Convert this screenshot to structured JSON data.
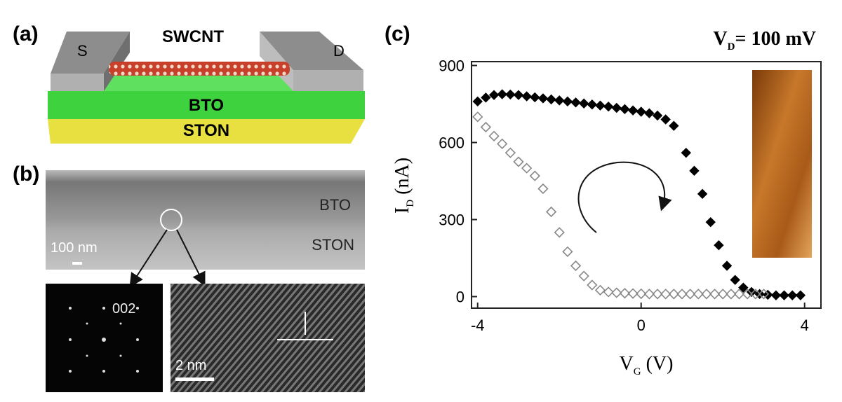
{
  "panels": {
    "a": "(a)",
    "b": "(b)",
    "c": "(c)"
  },
  "schematic": {
    "channel": "SWCNT",
    "source": "S",
    "drain": "D",
    "dielectric": "BTO",
    "substrate": "STON"
  },
  "tem": {
    "layer_top": "BTO",
    "layer_bottom": "STON",
    "scale_bar": "100 nm",
    "diffraction_spot": "002",
    "hrtem_scale_bar": "2 nm"
  },
  "chart_data": {
    "type": "scatter",
    "title": {
      "main": "V",
      "sub": "D",
      "rest": "= 100 mV"
    },
    "x_label": {
      "main": "V",
      "sub": "G",
      "rest": " (V)"
    },
    "y_label": {
      "main": "I",
      "sub": "D",
      "rest": " (nA)"
    },
    "xlim": [
      -4.15,
      4.4
    ],
    "ylim": [
      -45,
      915
    ],
    "xticks": [
      -4,
      0,
      4
    ],
    "yticks": [
      0,
      300,
      600,
      900
    ],
    "series": [
      {
        "color": "#000000",
        "filled": true,
        "x": [
          -4.0,
          -3.8,
          -3.6,
          -3.4,
          -3.2,
          -3.0,
          -2.8,
          -2.6,
          -2.4,
          -2.2,
          -2.0,
          -1.8,
          -1.6,
          -1.4,
          -1.2,
          -1.0,
          -0.8,
          -0.6,
          -0.4,
          -0.2,
          0.0,
          0.2,
          0.4,
          0.6,
          0.8,
          1.1,
          1.3,
          1.5,
          1.7,
          1.9,
          2.1,
          2.3,
          2.5,
          2.7,
          2.9,
          3.1,
          3.3,
          3.5,
          3.7,
          3.9
        ],
        "values": [
          760,
          775,
          785,
          788,
          787,
          785,
          780,
          776,
          772,
          768,
          764,
          760,
          756,
          752,
          748,
          744,
          740,
          735,
          730,
          725,
          720,
          714,
          705,
          690,
          665,
          560,
          490,
          400,
          290,
          200,
          120,
          65,
          35,
          18,
          10,
          7,
          5,
          5,
          5,
          5
        ]
      },
      {
        "color": "#888888",
        "filled": false,
        "x": [
          -4.0,
          -3.8,
          -3.6,
          -3.4,
          -3.2,
          -3.0,
          -2.8,
          -2.6,
          -2.4,
          -2.2,
          -2.0,
          -1.8,
          -1.6,
          -1.4,
          -1.2,
          -1.0,
          -0.8,
          -0.6,
          -0.4,
          -0.2,
          0.0,
          0.2,
          0.4,
          0.6,
          0.8,
          1.0,
          1.2,
          1.4,
          1.6,
          1.8,
          2.0,
          2.2,
          2.4,
          2.6,
          2.8,
          3.0
        ],
        "values": [
          700,
          660,
          625,
          595,
          560,
          525,
          500,
          470,
          420,
          330,
          250,
          175,
          120,
          80,
          45,
          25,
          18,
          15,
          13,
          12,
          11,
          10,
          10,
          10,
          10,
          10,
          10,
          10,
          10,
          10,
          10,
          10,
          10,
          10,
          10,
          10
        ]
      }
    ]
  }
}
